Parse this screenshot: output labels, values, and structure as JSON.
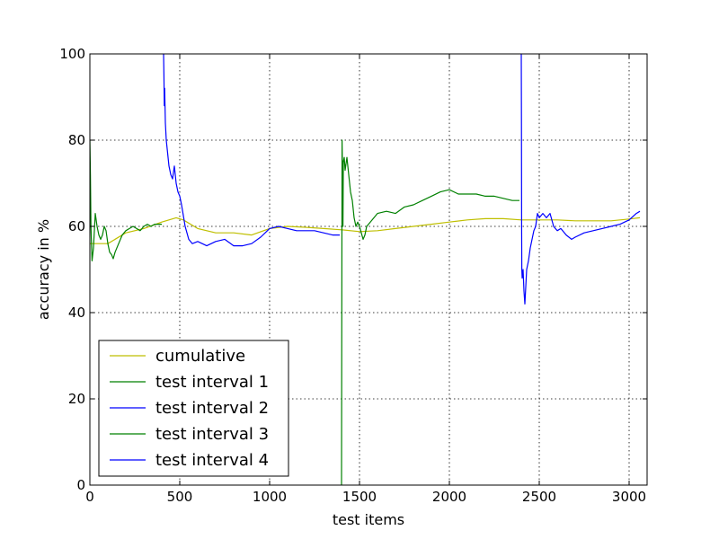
{
  "chart_data": {
    "type": "line",
    "xlabel": "test items",
    "ylabel": "accuracy in %",
    "xlim": [
      0,
      3100
    ],
    "ylim": [
      0,
      100
    ],
    "x_ticks": [
      "0",
      "500",
      "1000",
      "1500",
      "2000",
      "2500",
      "3000"
    ],
    "y_ticks": [
      "0",
      "20",
      "40",
      "60",
      "80",
      "100"
    ],
    "grid": true,
    "legend_position": "lower-left",
    "colors": {
      "yellow": "#bfbf00",
      "green": "#008000",
      "blue": "#0000ff"
    },
    "series": [
      {
        "name": "cumulative",
        "color": "#bfbf00",
        "x": [
          0,
          100,
          200,
          300,
          400,
          480,
          520,
          600,
          700,
          800,
          900,
          1000,
          1100,
          1200,
          1300,
          1400,
          1500,
          1600,
          1700,
          1800,
          1900,
          2000,
          2100,
          2200,
          2300,
          2400,
          2500,
          2600,
          2700,
          2800,
          2900,
          3000,
          3060
        ],
        "y": [
          56,
          56,
          58.5,
          59.5,
          61,
          62,
          61.5,
          59.5,
          58.5,
          58.5,
          58,
          59.5,
          60,
          59.8,
          59.5,
          59.2,
          58.8,
          59,
          59.5,
          60,
          60.5,
          61,
          61.5,
          61.8,
          61.8,
          61.5,
          61.5,
          61.5,
          61.3,
          61.3,
          61.3,
          61.7,
          62
        ]
      },
      {
        "name": "test interval 1",
        "color": "#008000",
        "x": [
          0,
          3,
          6,
          12,
          20,
          30,
          40,
          50,
          60,
          70,
          80,
          90,
          100,
          110,
          120,
          130,
          140,
          160,
          180,
          200,
          220,
          240,
          260,
          280,
          300,
          320,
          340,
          360,
          380,
          400
        ],
        "y": [
          80,
          72,
          60,
          52,
          55,
          63,
          60,
          58,
          57,
          58,
          60,
          59,
          56,
          54,
          53.5,
          52.5,
          54,
          56,
          58,
          59,
          59.5,
          60,
          59.5,
          59,
          60,
          60.5,
          60,
          60.5,
          60.5,
          60.5
        ]
      },
      {
        "name": "test interval 2",
        "color": "#0000ff",
        "x": [
          410,
          412,
          414,
          416,
          420,
          425,
          430,
          440,
          450,
          460,
          470,
          480,
          490,
          500,
          510,
          530,
          550,
          570,
          600,
          650,
          700,
          750,
          800,
          850,
          900,
          950,
          1000,
          1050,
          1100,
          1150,
          1200,
          1250,
          1300,
          1350,
          1390
        ],
        "y": [
          100,
          95,
          88,
          92,
          84,
          80,
          78,
          74,
          72,
          71,
          74,
          70,
          68,
          67,
          65,
          60,
          57,
          56,
          56.5,
          55.5,
          56.5,
          57,
          55.5,
          55.5,
          56,
          57.5,
          59.5,
          60,
          59.5,
          59,
          59,
          59,
          58.5,
          58,
          58
        ]
      },
      {
        "name": "test interval 3",
        "color": "#008000",
        "x": [
          1400,
          1403,
          1406,
          1408,
          1410,
          1415,
          1420,
          1430,
          1440,
          1450,
          1460,
          1470,
          1480,
          1490,
          1500,
          1510,
          1520,
          1530,
          1540,
          1560,
          1600,
          1650,
          1700,
          1750,
          1800,
          1850,
          1900,
          1950,
          2000,
          2050,
          2100,
          2150,
          2200,
          2250,
          2300,
          2350,
          2390
        ],
        "y": [
          0,
          80,
          70,
          60,
          75,
          76,
          73,
          76,
          72,
          68,
          66,
          62,
          60,
          61,
          60,
          58.5,
          57,
          58,
          60,
          61,
          63,
          63.5,
          63,
          64.5,
          65,
          66,
          67,
          68,
          68.5,
          67.5,
          67.5,
          67.5,
          67,
          67,
          66.5,
          66,
          66
        ]
      },
      {
        "name": "test interval 4",
        "color": "#0000ff",
        "x": [
          2400,
          2401,
          2402,
          2403,
          2405,
          2410,
          2415,
          2420,
          2425,
          2430,
          2440,
          2450,
          2460,
          2470,
          2480,
          2490,
          2500,
          2520,
          2540,
          2560,
          2580,
          2600,
          2620,
          2650,
          2680,
          2700,
          2750,
          2800,
          2850,
          2900,
          2950,
          3000,
          3040,
          3060
        ],
        "y": [
          100,
          85,
          60,
          50,
          48,
          50,
          45,
          42,
          46,
          50,
          52,
          55,
          57,
          59,
          60,
          63,
          62,
          63,
          62,
          63,
          60,
          59,
          59.5,
          58,
          57,
          57.5,
          58.5,
          59,
          59.5,
          60,
          60.5,
          61.5,
          63,
          63.5
        ]
      }
    ]
  }
}
